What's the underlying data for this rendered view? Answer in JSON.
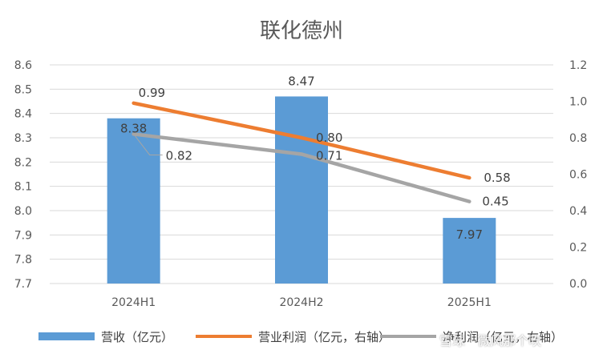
{
  "title": "联化德州",
  "chart_data": {
    "type": "bar",
    "categories": [
      "2024H1",
      "2024H2",
      "2025H1"
    ],
    "left_axis": {
      "min": 7.7,
      "max": 8.6,
      "step": 0.1,
      "ticks": [
        "7.7",
        "7.8",
        "7.9",
        "8.0",
        "8.1",
        "8.2",
        "8.3",
        "8.4",
        "8.5",
        "8.6"
      ]
    },
    "right_axis": {
      "min": 0.0,
      "max": 1.2,
      "step": 0.2,
      "ticks": [
        "0.0",
        "0.2",
        "0.4",
        "0.6",
        "0.8",
        "1.0",
        "1.2"
      ]
    },
    "grid": true,
    "legend_position": "bottom",
    "series": [
      {
        "name": "营收（亿元）",
        "type": "bar",
        "axis": "left",
        "color": "#5B9BD5",
        "values": [
          8.38,
          8.47,
          7.97
        ],
        "labels": [
          "8.38",
          "8.47",
          "7.97"
        ]
      },
      {
        "name": "营业利润（亿元，右轴）",
        "type": "line",
        "axis": "right",
        "color": "#ED7D31",
        "values": [
          0.99,
          0.8,
          0.58
        ],
        "labels": [
          "0.99",
          "0.80",
          "0.58"
        ]
      },
      {
        "name": "净利润（亿元，右轴）",
        "type": "line",
        "axis": "right",
        "color": "#A5A5A5",
        "values": [
          0.82,
          0.71,
          0.45
        ],
        "labels": [
          "0.82",
          "0.71",
          "0.45"
        ]
      }
    ]
  },
  "watermark": "雪球 · 微风那个吹"
}
